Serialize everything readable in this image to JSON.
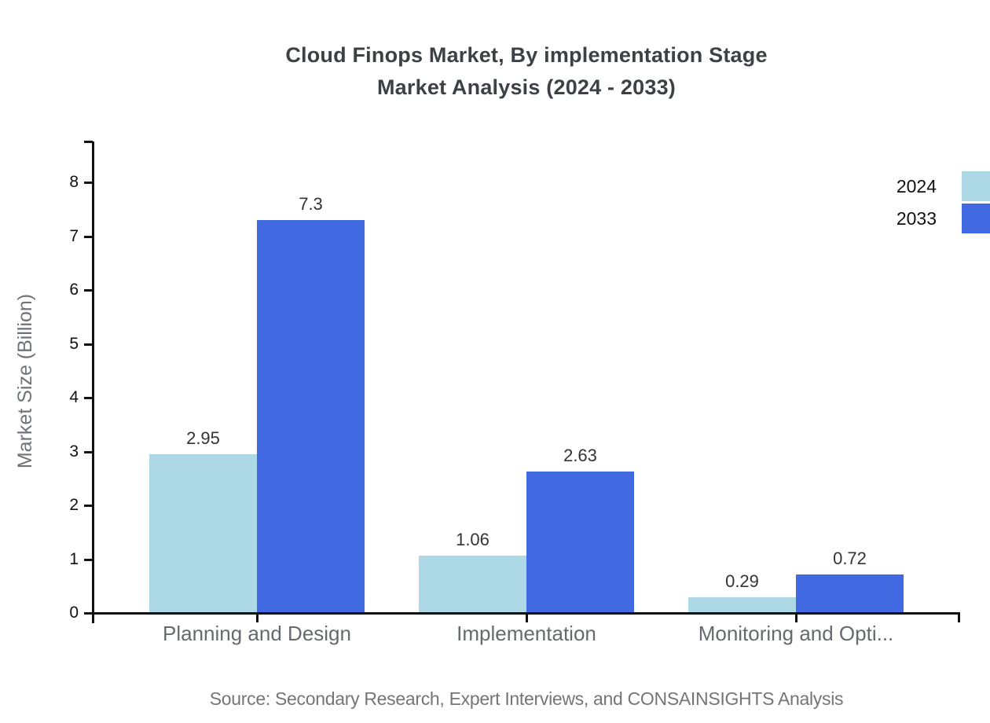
{
  "page": {
    "background": "#ffffff"
  },
  "chart_data": {
    "type": "bar",
    "title_line1": "Cloud Finops Market, By implementation Stage",
    "title_line2": "Market Analysis (2024 - 2033)",
    "ylabel": "Market Size (Billion)",
    "xlabel": "",
    "categories": [
      "Planning and Design",
      "Implementation",
      "Monitoring and Opti..."
    ],
    "series": [
      {
        "name": "2024",
        "color": "#ADD8E6",
        "values": [
          2.95,
          1.06,
          0.29
        ]
      },
      {
        "name": "2033",
        "color": "#4169E1",
        "values": [
          7.3,
          2.63,
          0.72
        ]
      }
    ],
    "yticks": [
      0,
      1,
      2,
      3,
      4,
      5,
      6,
      7,
      8
    ],
    "ylim": [
      0,
      8.8
    ],
    "grid": false,
    "legend_position": "top-right",
    "axis_color": "#111111",
    "source": "Source: Secondary Research, Expert Interviews, and CONSAINSIGHTS Analysis"
  }
}
